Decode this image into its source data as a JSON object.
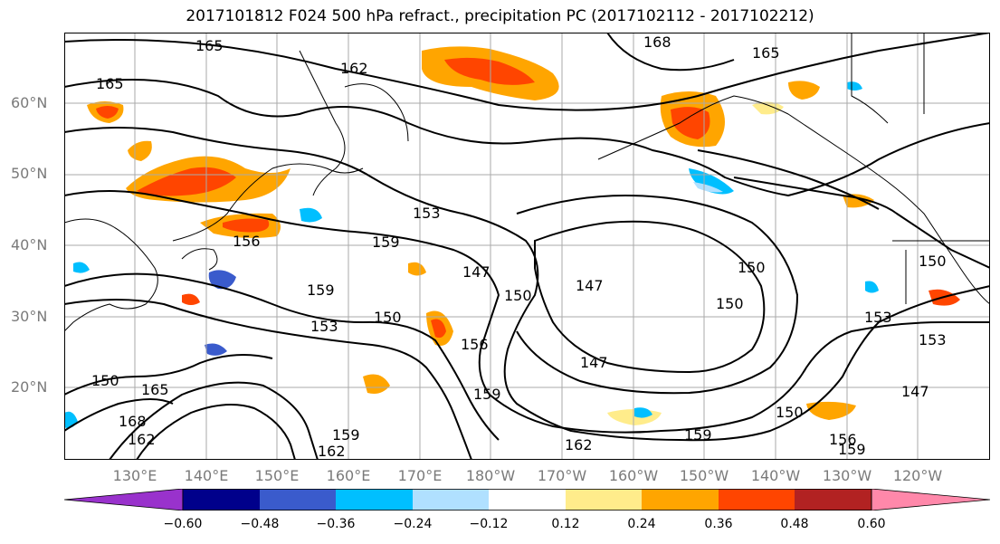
{
  "title": "2017101812 F024 500 hPa refract., precipitation PC (2017102112 - 2017102212)",
  "lat_labels": [
    "60°N",
    "50°N",
    "40°N",
    "30°N",
    "20°N"
  ],
  "lon_labels": [
    "130°E",
    "140°E",
    "150°E",
    "160°E",
    "170°E",
    "180°W",
    "170°W",
    "160°W",
    "150°W",
    "140°W",
    "130°W",
    "120°W"
  ],
  "contour_labels": [
    "165",
    "165",
    "162",
    "168",
    "165",
    "153",
    "156",
    "159",
    "159",
    "153",
    "150",
    "147",
    "150",
    "147",
    "150",
    "150",
    "150",
    "153",
    "153",
    "147",
    "150",
    "165",
    "168",
    "162",
    "162",
    "159",
    "162",
    "159",
    "156",
    "159",
    "147",
    "150",
    "156",
    "159"
  ],
  "colorbar": {
    "tick_labels": [
      "−0.60",
      "−0.48",
      "−0.36",
      "−0.24",
      "−0.12",
      "0.12",
      "0.24",
      "0.36",
      "0.48",
      "0.60"
    ],
    "colors": [
      "#9932cc",
      "#00008b",
      "#3a5bcc",
      "#00bfff",
      "#b0e0ff",
      "#ffffff",
      "#ffec8b",
      "#ffa500",
      "#ff4500",
      "#b22222",
      "#ff88aa"
    ]
  }
}
